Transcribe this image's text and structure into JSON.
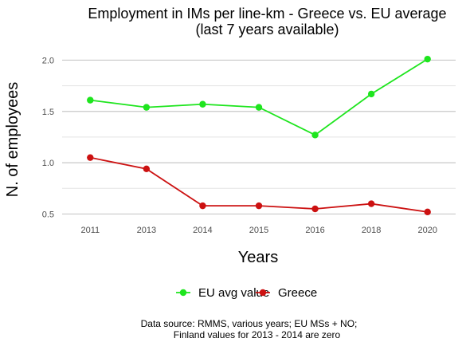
{
  "chart_data": {
    "type": "line",
    "title": "Employment in IMs per line-km - Greece vs. EU average",
    "subtitle": "(last 7 years available)",
    "xlabel": "Years",
    "ylabel": "N. of employees",
    "categories": [
      "2011",
      "2013",
      "2014",
      "2015",
      "2016",
      "2018",
      "2020"
    ],
    "series": [
      {
        "name": "EU avg value",
        "color": "#1ee51e",
        "values": [
          1.61,
          1.54,
          1.57,
          1.54,
          1.27,
          1.67,
          2.01
        ]
      },
      {
        "name": "Greece",
        "color": "#cc1111",
        "values": [
          1.05,
          0.94,
          0.58,
          0.58,
          0.55,
          0.6,
          0.52
        ]
      }
    ],
    "yticks": [
      "0.5",
      "1.0",
      "1.5",
      "2.0"
    ],
    "ylim": [
      0.41,
      2.12
    ],
    "grid": true,
    "legend_position": "bottom"
  },
  "caption": {
    "line1": "Data source: RMMS, various years; EU MSs + NO;",
    "line2": "Finland values for 2013 - 2014 are zero"
  }
}
